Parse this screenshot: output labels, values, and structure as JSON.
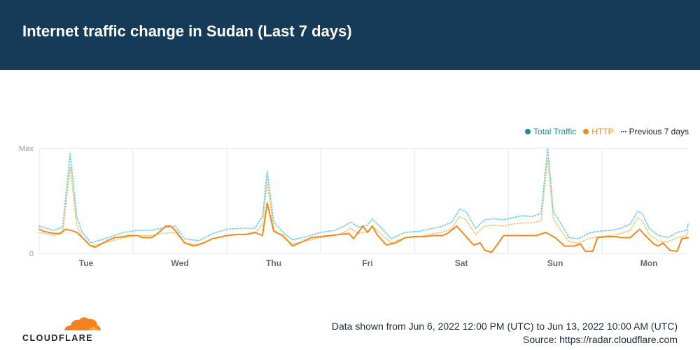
{
  "header": {
    "title": "Internet traffic change in Sudan (Last 7 days)"
  },
  "colors": {
    "header_bg": "#163b58",
    "total_traffic": "#1f8aa0",
    "http": "#f28a1e",
    "previous_total": "#5ecfe6",
    "previous_http": "#f5c26b",
    "grid": "#e6e6e6",
    "logo": "#f48120"
  },
  "legend": {
    "total": "Total Traffic",
    "http": "HTTP",
    "previous": "Previous 7 days"
  },
  "footer": {
    "logo_text": "CLOUDFLARE",
    "range": "Data shown from Jun 6, 2022 12:00 PM (UTC) to Jun 13, 2022 10:00 AM (UTC)",
    "source": "Source: https://radar.cloudflare.com"
  },
  "chart_data": {
    "type": "line",
    "title": "Internet traffic change in Sudan (Last 7 days)",
    "x_unit": "days since Jun 6, 2022 12:00 UTC",
    "xlim": [
      0,
      6.917
    ],
    "ylim": [
      0,
      100
    ],
    "y_tick_labels": [
      "0",
      "Max"
    ],
    "x_ticks": [
      {
        "x": 0.5,
        "label": "Tue"
      },
      {
        "x": 1.5,
        "label": "Wed"
      },
      {
        "x": 2.5,
        "label": "Thu"
      },
      {
        "x": 3.5,
        "label": "Fri"
      },
      {
        "x": 4.5,
        "label": "Sat"
      },
      {
        "x": 5.5,
        "label": "Sun"
      },
      {
        "x": 6.5,
        "label": "Mon"
      }
    ],
    "legend_position": "top-right",
    "series": [
      {
        "name": "Total Traffic",
        "key": "total",
        "style": "solid",
        "points": [
          [
            0,
            29
          ],
          [
            0.05,
            26
          ],
          [
            0.15,
            24
          ],
          [
            0.22,
            24
          ],
          [
            0.28,
            29
          ],
          [
            0.34,
            28
          ],
          [
            0.4,
            25
          ],
          [
            0.46,
            20
          ],
          [
            0.55,
            10
          ],
          [
            0.6,
            9
          ],
          [
            0.7,
            15
          ],
          [
            0.8,
            19
          ],
          [
            0.9,
            21
          ],
          [
            0.95,
            22
          ],
          [
            1.05,
            22
          ],
          [
            1.1,
            20
          ],
          [
            1.2,
            20
          ],
          [
            1.25,
            23
          ],
          [
            1.3,
            27
          ],
          [
            1.35,
            33
          ],
          [
            1.4,
            33
          ],
          [
            1.45,
            27
          ],
          [
            1.55,
            14
          ],
          [
            1.65,
            11
          ],
          [
            1.75,
            15
          ],
          [
            1.85,
            20
          ],
          [
            2,
            23
          ],
          [
            2.1,
            24
          ],
          [
            2.2,
            23
          ],
          [
            2.3,
            25
          ],
          [
            2.38,
            22
          ],
          [
            2.43,
            55
          ],
          [
            2.5,
            27
          ],
          [
            2.6,
            22
          ],
          [
            2.7,
            10
          ],
          [
            2.8,
            15
          ],
          [
            2.9,
            20
          ],
          [
            3,
            21
          ],
          [
            3.1,
            22
          ],
          [
            3.2,
            23
          ],
          [
            3.3,
            25
          ],
          [
            3.35,
            19
          ],
          [
            3.4,
            25
          ],
          [
            3.45,
            33
          ],
          [
            3.5,
            27
          ],
          [
            3.55,
            33
          ],
          [
            3.6,
            23
          ],
          [
            3.7,
            12
          ],
          [
            3.8,
            14
          ],
          [
            3.9,
            20
          ],
          [
            4,
            22
          ],
          [
            4.1,
            22
          ],
          [
            4.2,
            23
          ],
          [
            4.3,
            23
          ],
          [
            4.35,
            25
          ],
          [
            4.45,
            32
          ],
          [
            4.55,
            21
          ],
          [
            4.63,
            12
          ],
          [
            4.7,
            14
          ],
          [
            4.75,
            4
          ],
          [
            4.82,
            2
          ],
          [
            4.88,
            11
          ],
          [
            4.95,
            22
          ],
          [
            5.1,
            23
          ],
          [
            5.2,
            23
          ],
          [
            5.3,
            23
          ],
          [
            5.4,
            26
          ],
          [
            5.5,
            21
          ],
          [
            5.6,
            11
          ],
          [
            5.7,
            10
          ],
          [
            5.77,
            13
          ],
          [
            5.82,
            3
          ],
          [
            5.9,
            4
          ],
          [
            5.95,
            21
          ],
          [
            6.05,
            21
          ],
          [
            6.15,
            21
          ],
          [
            6.2,
            20
          ],
          [
            6.3,
            20
          ],
          [
            6.35,
            25
          ],
          [
            6.4,
            29
          ],
          [
            6.45,
            24
          ],
          [
            6.55,
            14
          ],
          [
            6.6,
            11
          ],
          [
            6.65,
            14
          ],
          [
            6.72,
            4
          ],
          [
            6.8,
            3
          ],
          [
            6.85,
            18
          ],
          [
            6.917,
            19
          ]
        ]
      },
      {
        "name": "HTTP",
        "key": "http",
        "style": "solid",
        "points": [
          [
            0,
            23
          ],
          [
            0.05,
            21
          ],
          [
            0.15,
            19
          ],
          [
            0.22,
            19
          ],
          [
            0.28,
            23
          ],
          [
            0.34,
            22
          ],
          [
            0.4,
            20
          ],
          [
            0.46,
            15
          ],
          [
            0.55,
            7
          ],
          [
            0.6,
            6
          ],
          [
            0.7,
            11
          ],
          [
            0.8,
            15
          ],
          [
            0.9,
            16
          ],
          [
            0.95,
            17
          ],
          [
            1.05,
            17
          ],
          [
            1.1,
            15
          ],
          [
            1.2,
            15
          ],
          [
            1.25,
            18
          ],
          [
            1.3,
            22
          ],
          [
            1.35,
            26
          ],
          [
            1.4,
            26
          ],
          [
            1.45,
            22
          ],
          [
            1.55,
            10
          ],
          [
            1.65,
            7
          ],
          [
            1.75,
            10
          ],
          [
            1.85,
            14
          ],
          [
            2,
            17
          ],
          [
            2.1,
            18
          ],
          [
            2.2,
            18
          ],
          [
            2.3,
            20
          ],
          [
            2.38,
            17
          ],
          [
            2.43,
            48
          ],
          [
            2.5,
            21
          ],
          [
            2.6,
            17
          ],
          [
            2.7,
            7
          ],
          [
            2.8,
            11
          ],
          [
            2.9,
            15
          ],
          [
            3,
            16
          ],
          [
            3.1,
            17
          ],
          [
            3.2,
            18
          ],
          [
            3.3,
            19
          ],
          [
            3.35,
            14
          ],
          [
            3.4,
            20
          ],
          [
            3.45,
            26
          ],
          [
            3.5,
            20
          ],
          [
            3.55,
            26
          ],
          [
            3.6,
            18
          ],
          [
            3.7,
            8
          ],
          [
            3.8,
            10
          ],
          [
            3.9,
            15
          ],
          [
            4,
            16
          ],
          [
            4.1,
            16
          ],
          [
            4.2,
            17
          ],
          [
            4.3,
            17
          ],
          [
            4.35,
            19
          ],
          [
            4.45,
            26
          ],
          [
            4.55,
            16
          ],
          [
            4.63,
            8
          ],
          [
            4.7,
            10
          ],
          [
            4.75,
            3
          ],
          [
            4.82,
            1
          ],
          [
            4.88,
            8
          ],
          [
            4.95,
            17
          ],
          [
            5.1,
            17
          ],
          [
            5.2,
            17
          ],
          [
            5.3,
            17
          ],
          [
            5.4,
            20
          ],
          [
            5.5,
            15
          ],
          [
            5.6,
            7
          ],
          [
            5.7,
            7
          ],
          [
            5.77,
            9
          ],
          [
            5.82,
            2
          ],
          [
            5.9,
            2
          ],
          [
            5.95,
            15
          ],
          [
            6.05,
            16
          ],
          [
            6.15,
            16
          ],
          [
            6.2,
            15
          ],
          [
            6.3,
            15
          ],
          [
            6.35,
            19
          ],
          [
            6.4,
            23
          ],
          [
            6.45,
            18
          ],
          [
            6.55,
            9
          ],
          [
            6.6,
            7
          ],
          [
            6.65,
            10
          ],
          [
            6.72,
            3
          ],
          [
            6.8,
            2
          ],
          [
            6.85,
            14
          ],
          [
            6.917,
            15
          ]
        ]
      },
      {
        "name": "Previous 7 days",
        "key": "previous_total",
        "style": "dotted",
        "points": [
          [
            0,
            26
          ],
          [
            0.15,
            22
          ],
          [
            0.25,
            25
          ],
          [
            0.33,
            95
          ],
          [
            0.4,
            35
          ],
          [
            0.46,
            20
          ],
          [
            0.55,
            10
          ],
          [
            0.7,
            14
          ],
          [
            0.9,
            20
          ],
          [
            1.05,
            22
          ],
          [
            1.2,
            22
          ],
          [
            1.3,
            24
          ],
          [
            1.45,
            26
          ],
          [
            1.55,
            14
          ],
          [
            1.7,
            12
          ],
          [
            1.85,
            19
          ],
          [
            2,
            23
          ],
          [
            2.15,
            24
          ],
          [
            2.3,
            24
          ],
          [
            2.38,
            35
          ],
          [
            2.43,
            78
          ],
          [
            2.5,
            30
          ],
          [
            2.6,
            20
          ],
          [
            2.7,
            13
          ],
          [
            2.85,
            16
          ],
          [
            3,
            20
          ],
          [
            3.15,
            22
          ],
          [
            3.25,
            26
          ],
          [
            3.32,
            30
          ],
          [
            3.4,
            25
          ],
          [
            3.5,
            27
          ],
          [
            3.55,
            33
          ],
          [
            3.65,
            24
          ],
          [
            3.75,
            14
          ],
          [
            3.9,
            20
          ],
          [
            4.05,
            21
          ],
          [
            4.2,
            24
          ],
          [
            4.3,
            26
          ],
          [
            4.4,
            30
          ],
          [
            4.48,
            42
          ],
          [
            4.55,
            40
          ],
          [
            4.65,
            24
          ],
          [
            4.75,
            32
          ],
          [
            4.85,
            33
          ],
          [
            4.95,
            32
          ],
          [
            5.05,
            34
          ],
          [
            5.15,
            36
          ],
          [
            5.25,
            35
          ],
          [
            5.35,
            38
          ],
          [
            5.42,
            100
          ],
          [
            5.48,
            40
          ],
          [
            5.55,
            30
          ],
          [
            5.65,
            15
          ],
          [
            5.75,
            14
          ],
          [
            5.85,
            19
          ],
          [
            5.95,
            21
          ],
          [
            6.1,
            22
          ],
          [
            6.2,
            24
          ],
          [
            6.3,
            28
          ],
          [
            6.38,
            40
          ],
          [
            6.43,
            38
          ],
          [
            6.5,
            24
          ],
          [
            6.6,
            17
          ],
          [
            6.7,
            15
          ],
          [
            6.8,
            20
          ],
          [
            6.9,
            22
          ],
          [
            6.917,
            28
          ]
        ]
      },
      {
        "name": "Previous 7 days",
        "key": "previous_http",
        "style": "dotted",
        "points": [
          [
            0,
            20
          ],
          [
            0.15,
            17
          ],
          [
            0.25,
            19
          ],
          [
            0.33,
            82
          ],
          [
            0.4,
            27
          ],
          [
            0.46,
            15
          ],
          [
            0.55,
            7
          ],
          [
            0.7,
            10
          ],
          [
            0.9,
            15
          ],
          [
            1.05,
            17
          ],
          [
            1.2,
            17
          ],
          [
            1.3,
            19
          ],
          [
            1.45,
            20
          ],
          [
            1.55,
            10
          ],
          [
            1.7,
            8
          ],
          [
            1.85,
            14
          ],
          [
            2,
            17
          ],
          [
            2.15,
            18
          ],
          [
            2.3,
            19
          ],
          [
            2.38,
            28
          ],
          [
            2.43,
            68
          ],
          [
            2.5,
            23
          ],
          [
            2.6,
            15
          ],
          [
            2.7,
            9
          ],
          [
            2.85,
            12
          ],
          [
            3,
            15
          ],
          [
            3.15,
            17
          ],
          [
            3.25,
            20
          ],
          [
            3.32,
            24
          ],
          [
            3.4,
            19
          ],
          [
            3.5,
            21
          ],
          [
            3.55,
            26
          ],
          [
            3.65,
            18
          ],
          [
            3.75,
            10
          ],
          [
            3.9,
            15
          ],
          [
            4.05,
            16
          ],
          [
            4.2,
            19
          ],
          [
            4.3,
            20
          ],
          [
            4.4,
            24
          ],
          [
            4.48,
            35
          ],
          [
            4.55,
            32
          ],
          [
            4.65,
            18
          ],
          [
            4.75,
            26
          ],
          [
            4.85,
            27
          ],
          [
            4.95,
            26
          ],
          [
            5.05,
            28
          ],
          [
            5.15,
            29
          ],
          [
            5.25,
            29
          ],
          [
            5.35,
            31
          ],
          [
            5.42,
            90
          ],
          [
            5.48,
            33
          ],
          [
            5.55,
            23
          ],
          [
            5.65,
            11
          ],
          [
            5.75,
            10
          ],
          [
            5.85,
            14
          ],
          [
            5.95,
            16
          ],
          [
            6.1,
            17
          ],
          [
            6.2,
            19
          ],
          [
            6.3,
            22
          ],
          [
            6.38,
            34
          ],
          [
            6.43,
            31
          ],
          [
            6.5,
            18
          ],
          [
            6.6,
            12
          ],
          [
            6.7,
            11
          ],
          [
            6.8,
            15
          ],
          [
            6.9,
            17
          ],
          [
            6.917,
            22
          ]
        ]
      }
    ]
  }
}
